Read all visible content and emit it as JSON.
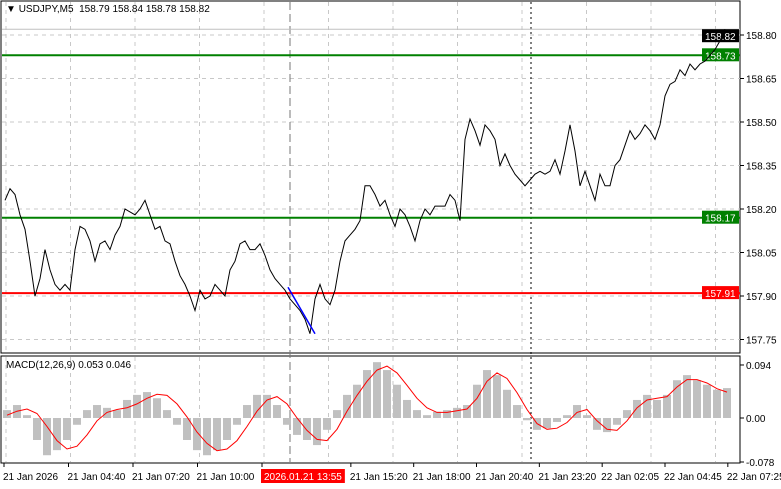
{
  "header": {
    "symbol": "USDJPY,M5",
    "ohlc": "158.79 158.84 158.78 158.82",
    "menu_icon": "triangle-down-icon"
  },
  "price_axis": {
    "ticks": [
      "158.80",
      "158.65",
      "158.50",
      "158.35",
      "158.20",
      "158.05",
      "157.90",
      "157.75"
    ],
    "current": "158.82"
  },
  "levels": [
    {
      "label": "158.73",
      "value": 158.73,
      "color": "#008000"
    },
    {
      "label": "158.17",
      "value": 158.17,
      "color": "#008000"
    },
    {
      "label": "157.91",
      "value": 157.91,
      "color": "#ff0000"
    }
  ],
  "time_axis": {
    "labels": [
      "21 Jan 2026",
      "21 Jan 04:40",
      "21 Jan 07:20",
      "21 Jan 10:00",
      "2026.01.21 13:55",
      "21 Jan 15:20",
      "21 Jan 18:00",
      "21 Jan 20:40",
      "21 Jan 23:20",
      "22 Jan 02:05",
      "22 Jan 04:45",
      "22 Jan 07:25"
    ],
    "crosshair_label": "2026.01.21 13:55"
  },
  "chart_data": [
    {
      "type": "line",
      "name": "USDJPY,M5",
      "ylim": [
        157.7,
        158.85
      ],
      "color": "#000000",
      "close": [
        158.23,
        158.27,
        158.25,
        158.18,
        158.13,
        158.02,
        157.9,
        157.96,
        158.06,
        157.99,
        157.94,
        157.92,
        157.94,
        157.92,
        158.06,
        158.14,
        158.13,
        158.09,
        158.02,
        158.08,
        158.09,
        158.06,
        158.11,
        158.14,
        158.2,
        158.19,
        158.18,
        158.2,
        158.23,
        158.18,
        158.13,
        158.14,
        158.09,
        158.08,
        158.02,
        157.97,
        157.94,
        157.9,
        157.85,
        157.92,
        157.89,
        157.9,
        157.94,
        157.92,
        157.9,
        157.99,
        158.02,
        158.08,
        158.09,
        158.06,
        158.06,
        158.08,
        158.04,
        157.99,
        157.96,
        157.94,
        157.92,
        157.89,
        157.87,
        157.85,
        157.82,
        157.77,
        157.89,
        157.94,
        157.89,
        157.87,
        157.92,
        158.02,
        158.09,
        158.11,
        158.13,
        158.16,
        158.28,
        158.28,
        158.25,
        158.21,
        158.23,
        158.18,
        158.14,
        158.2,
        158.18,
        158.14,
        158.09,
        158.16,
        158.2,
        158.18,
        158.21,
        158.21,
        158.21,
        158.25,
        158.23,
        158.16,
        158.44,
        158.51,
        158.47,
        158.42,
        158.49,
        158.47,
        158.44,
        158.35,
        158.39,
        158.35,
        158.32,
        158.3,
        158.28,
        158.3,
        158.32,
        158.33,
        158.32,
        158.33,
        158.37,
        158.32,
        158.4,
        158.49,
        158.4,
        158.28,
        158.33,
        158.28,
        158.23,
        158.32,
        158.28,
        158.28,
        158.35,
        158.37,
        158.42,
        158.47,
        158.44,
        158.46,
        158.49,
        158.47,
        158.44,
        158.49,
        158.59,
        158.63,
        158.64,
        158.68,
        158.66,
        158.7,
        158.68,
        158.7,
        158.71,
        158.73,
        158.75,
        158.78,
        158.82
      ],
      "drawn_segment": {
        "from": 157.93,
        "to": 157.77,
        "color": "#0000ff"
      }
    },
    {
      "type": "bar+line",
      "name": "MACD(12,26,9)",
      "values_text": "0.053 0.046",
      "ylim": [
        -0.078,
        0.094
      ],
      "ticks": [
        "0.094",
        "0.00",
        "-0.078"
      ],
      "histogram": [
        0.014,
        0.023,
        0.005,
        -0.039,
        -0.066,
        -0.057,
        -0.039,
        -0.012,
        0.014,
        0.023,
        0.018,
        0.014,
        0.032,
        0.041,
        0.046,
        0.035,
        0.014,
        -0.012,
        -0.039,
        -0.057,
        -0.066,
        -0.057,
        -0.039,
        -0.012,
        0.023,
        0.041,
        0.041,
        0.023,
        -0.012,
        -0.03,
        -0.039,
        -0.048,
        -0.021,
        0.014,
        0.041,
        0.059,
        0.085,
        0.099,
        0.085,
        0.059,
        0.032,
        0.014,
        0.005,
        0.011,
        0.014,
        0.018,
        0.023,
        0.059,
        0.085,
        0.076,
        0.05,
        0.023,
        -0.004,
        -0.021,
        -0.018,
        -0.007,
        0.005,
        0.023,
        0.005,
        -0.021,
        -0.025,
        -0.012,
        0.014,
        0.032,
        0.041,
        0.032,
        0.041,
        0.067,
        0.076,
        0.067,
        0.059,
        0.05,
        0.053
      ],
      "signal": [
        0.005,
        0.012,
        0.016,
        0.008,
        -0.015,
        -0.04,
        -0.055,
        -0.05,
        -0.03,
        -0.005,
        0.01,
        0.015,
        0.018,
        0.025,
        0.035,
        0.042,
        0.04,
        0.025,
        0.002,
        -0.025,
        -0.045,
        -0.058,
        -0.055,
        -0.04,
        -0.015,
        0.012,
        0.032,
        0.038,
        0.025,
        0.0,
        -0.022,
        -0.038,
        -0.04,
        -0.02,
        0.012,
        0.04,
        0.065,
        0.085,
        0.092,
        0.08,
        0.058,
        0.035,
        0.018,
        0.01,
        0.01,
        0.013,
        0.016,
        0.035,
        0.065,
        0.08,
        0.07,
        0.045,
        0.015,
        -0.01,
        -0.02,
        -0.018,
        -0.008,
        0.01,
        0.015,
        -0.005,
        -0.02,
        -0.022,
        -0.005,
        0.018,
        0.032,
        0.035,
        0.038,
        0.055,
        0.068,
        0.068,
        0.062,
        0.052,
        0.046
      ],
      "histogram_color": "#c0c0c0",
      "signal_color": "#ff0000"
    }
  ]
}
